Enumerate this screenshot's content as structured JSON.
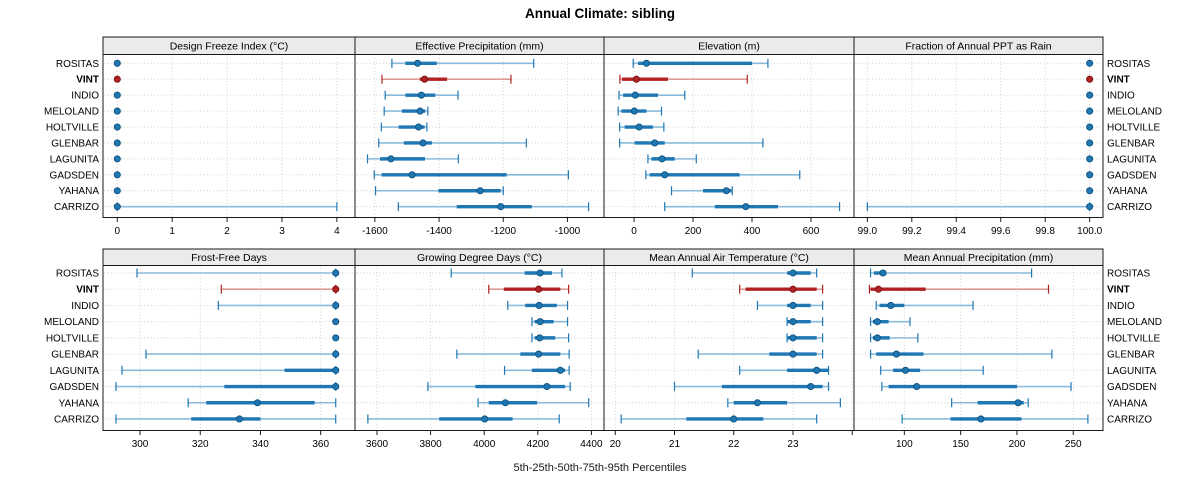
{
  "chart_data": {
    "type": "dotplot",
    "title": "Annual Climate: sibling",
    "caption": "5th-25th-50th-75th-95th Percentiles",
    "percentiles": [
      5,
      25,
      50,
      75,
      95
    ],
    "stations": [
      "ROSITAS",
      "VINT",
      "INDIO",
      "MELOLAND",
      "HOLTVILLE",
      "GLENBAR",
      "LAGUNITA",
      "GADSDEN",
      "YAHANA",
      "CARRIZO"
    ],
    "highlight_station": "VINT",
    "legend_position": "none",
    "grid": "dotted",
    "colors": {
      "series_blue": "#1f77b4",
      "series_blue_light": "#8abbdc",
      "series_blue_dark": "#10527e",
      "highlight_red": "#b22222",
      "highlight_red_light": "#dc9c96",
      "highlight_red_dark": "#7a1010",
      "header_bg": "#ebebeb",
      "panel_border": "#1a1a1a",
      "gridline": "#cccccc",
      "text": "#000000"
    },
    "panels": [
      {
        "title": "Design Freeze Index (°C)",
        "ticks": [
          0,
          1,
          2,
          3,
          4
        ],
        "tick_labels": [
          "0",
          "1",
          "2",
          "3",
          "4"
        ],
        "xlim": [
          -0.26,
          4.33
        ],
        "values": [
          [
            0,
            0,
            0,
            0,
            0
          ],
          [
            0,
            0,
            0,
            0,
            0
          ],
          [
            0,
            0,
            0,
            0,
            0
          ],
          [
            0,
            0,
            0,
            0,
            0
          ],
          [
            0,
            0,
            0,
            0,
            0
          ],
          [
            0,
            0,
            0,
            0,
            0
          ],
          [
            0,
            0,
            0,
            0,
            0
          ],
          [
            0,
            0,
            0,
            0,
            0
          ],
          [
            0,
            0,
            0,
            0,
            0
          ],
          [
            0,
            0,
            0,
            0,
            4
          ]
        ]
      },
      {
        "title": "Effective Precipitation (mm)",
        "ticks": [
          -1600,
          -1400,
          -1200,
          -1000
        ],
        "tick_labels": [
          "-1600",
          "-1400",
          "-1200",
          "-1000"
        ],
        "xlim": [
          -1662,
          -886
        ],
        "values": [
          [
            -1547,
            -1505,
            -1467,
            -1407,
            -1105
          ],
          [
            -1578,
            -1460,
            -1445,
            -1375,
            -1176
          ],
          [
            -1568,
            -1505,
            -1455,
            -1412,
            -1341
          ],
          [
            -1571,
            -1516,
            -1459,
            -1443,
            -1435
          ],
          [
            -1580,
            -1526,
            -1464,
            -1445,
            -1438
          ],
          [
            -1588,
            -1510,
            -1450,
            -1422,
            -1128
          ],
          [
            -1623,
            -1584,
            -1550,
            -1444,
            -1340
          ],
          [
            -1602,
            -1579,
            -1484,
            -1189,
            -997
          ],
          [
            -1598,
            -1402,
            -1272,
            -1208,
            -1200
          ],
          [
            -1527,
            -1345,
            -1208,
            -1111,
            -934
          ]
        ]
      },
      {
        "title": "Elevation (m)",
        "ticks": [
          0,
          200,
          400,
          600
        ],
        "tick_labels": [
          "0",
          "200",
          "400",
          "600"
        ],
        "xlim": [
          -102,
          746
        ],
        "values": [
          [
            -3,
            14,
            42,
            400,
            454
          ],
          [
            -48,
            -41,
            8,
            115,
            384
          ],
          [
            -51,
            -37,
            4,
            81,
            172
          ],
          [
            -54,
            -43,
            1,
            42,
            93
          ],
          [
            -49,
            -32,
            17,
            64,
            101
          ],
          [
            -49,
            2,
            70,
            104,
            437
          ],
          [
            47,
            59,
            95,
            138,
            211
          ],
          [
            40,
            53,
            104,
            358,
            562
          ],
          [
            127,
            234,
            313,
            330,
            333
          ],
          [
            104,
            274,
            379,
            488,
            697
          ]
        ]
      },
      {
        "title": "Fraction of Annual PPT as Rain",
        "ticks": [
          99.0,
          99.2,
          99.4,
          99.6,
          99.8,
          100.0
        ],
        "tick_labels": [
          "99.0",
          "99.2",
          "99.4",
          "99.6",
          "99.8",
          "100.0"
        ],
        "xlim": [
          98.94,
          100.06
        ],
        "values": [
          [
            100,
            100,
            100,
            100,
            100
          ],
          [
            100,
            100,
            100,
            100,
            100
          ],
          [
            100,
            100,
            100,
            100,
            100
          ],
          [
            100,
            100,
            100,
            100,
            100
          ],
          [
            100,
            100,
            100,
            100,
            100
          ],
          [
            100,
            100,
            100,
            100,
            100
          ],
          [
            100,
            100,
            100,
            100,
            100
          ],
          [
            100,
            100,
            100,
            100,
            100
          ],
          [
            100,
            100,
            100,
            100,
            100
          ],
          [
            99.0,
            100,
            100,
            100,
            100
          ]
        ]
      },
      {
        "title": "Frost-Free Days",
        "ticks": [
          300,
          320,
          340,
          360
        ],
        "tick_labels": [
          "300",
          "320",
          "340",
          "360"
        ],
        "xlim": [
          287.7,
          371.4
        ],
        "values": [
          [
            299,
            365,
            365,
            365,
            365
          ],
          [
            327,
            365,
            365,
            365,
            365
          ],
          [
            326,
            365,
            365,
            365,
            365
          ],
          [
            365,
            365,
            365,
            365,
            365
          ],
          [
            365,
            365,
            365,
            365,
            365
          ],
          [
            302,
            365,
            365,
            365,
            365
          ],
          [
            294,
            348,
            365,
            365,
            365
          ],
          [
            292,
            328,
            365,
            365,
            365
          ],
          [
            316,
            322,
            339,
            358,
            365
          ],
          [
            292,
            317,
            333,
            340,
            365
          ]
        ]
      },
      {
        "title": "Growing Degree Days (°C)",
        "ticks": [
          3600,
          3800,
          4000,
          4200,
          4400
        ],
        "tick_labels": [
          "3600",
          "3800",
          "4000",
          "4200",
          "4400"
        ],
        "xlim": [
          3518,
          4447
        ],
        "values": [
          [
            3877,
            4151,
            4209,
            4253,
            4290
          ],
          [
            4017,
            4073,
            4203,
            4284,
            4315
          ],
          [
            4088,
            4153,
            4205,
            4271,
            4311
          ],
          [
            4178,
            4188,
            4209,
            4259,
            4311
          ],
          [
            4178,
            4188,
            4207,
            4265,
            4315
          ],
          [
            3898,
            4135,
            4203,
            4284,
            4317
          ],
          [
            4076,
            4178,
            4284,
            4302,
            4317
          ],
          [
            3790,
            3967,
            4234,
            4302,
            4321
          ],
          [
            3977,
            4017,
            4079,
            4197,
            4390
          ],
          [
            3566,
            3832,
            4002,
            4106,
            4280
          ]
        ]
      },
      {
        "title": "Mean Annual Air Temperature (°C)",
        "ticks": [
          20,
          21,
          22,
          23,
          24
        ],
        "tick_labels": [
          "20",
          "21",
          "22",
          "23",
          ""
        ],
        "xlim": [
          19.81,
          24.03
        ],
        "values": [
          [
            21.3,
            22.9,
            23.0,
            23.3,
            23.4
          ],
          [
            22.1,
            22.2,
            23.0,
            23.4,
            23.5
          ],
          [
            22.4,
            22.9,
            23.0,
            23.3,
            23.5
          ],
          [
            22.9,
            22.9,
            23.0,
            23.3,
            23.5
          ],
          [
            22.9,
            22.9,
            23.0,
            23.4,
            23.5
          ],
          [
            21.4,
            22.6,
            23.0,
            23.4,
            23.5
          ],
          [
            22.1,
            22.9,
            23.4,
            23.6,
            23.6
          ],
          [
            21.0,
            21.8,
            23.3,
            23.5,
            23.6
          ],
          [
            21.9,
            22.0,
            22.4,
            22.9,
            23.8
          ],
          [
            20.1,
            21.2,
            22.0,
            22.5,
            23.4
          ]
        ]
      },
      {
        "title": "Mean Annual Precipitation (mm)",
        "ticks": [
          100,
          150,
          200,
          250
        ],
        "tick_labels": [
          "100",
          "150",
          "200",
          "250"
        ],
        "xlim": [
          55.3,
          276.4
        ],
        "values": [
          [
            70,
            73,
            81,
            84,
            213
          ],
          [
            69,
            70,
            77,
            119,
            228
          ],
          [
            75,
            78,
            88,
            100,
            161
          ],
          [
            70,
            72,
            76,
            86,
            105
          ],
          [
            70,
            72,
            76,
            87,
            112
          ],
          [
            70,
            75,
            93,
            117,
            231
          ],
          [
            79,
            90,
            101,
            114,
            170
          ],
          [
            80,
            86,
            111,
            200,
            248
          ],
          [
            142,
            165,
            201,
            206,
            210
          ],
          [
            98,
            141,
            168,
            204,
            263
          ]
        ]
      }
    ]
  }
}
